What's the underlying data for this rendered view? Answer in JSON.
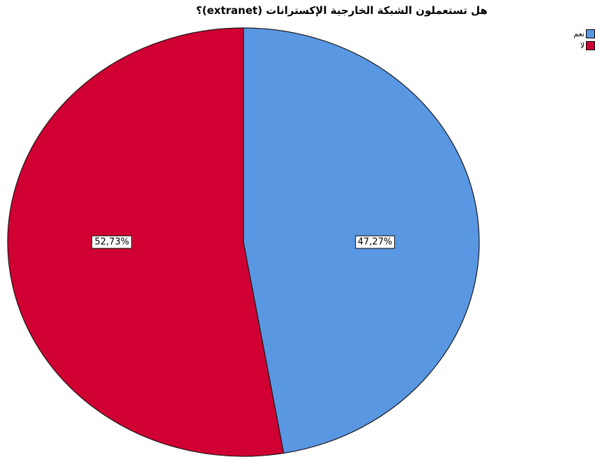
{
  "chart_data": {
    "type": "pie",
    "title": "هل تستعملون الشبكة الخارجية الإكسترانات (extranet)؟",
    "slices": [
      {
        "label": "نعم",
        "value": 47.27,
        "value_label": "47,27%",
        "color": "#5a97e3"
      },
      {
        "label": "لا",
        "value": 52.73,
        "value_label": "52,73%",
        "color": "#d10032"
      }
    ],
    "legend_position": "top-right",
    "start_angle": "top",
    "direction": "clockwise"
  }
}
